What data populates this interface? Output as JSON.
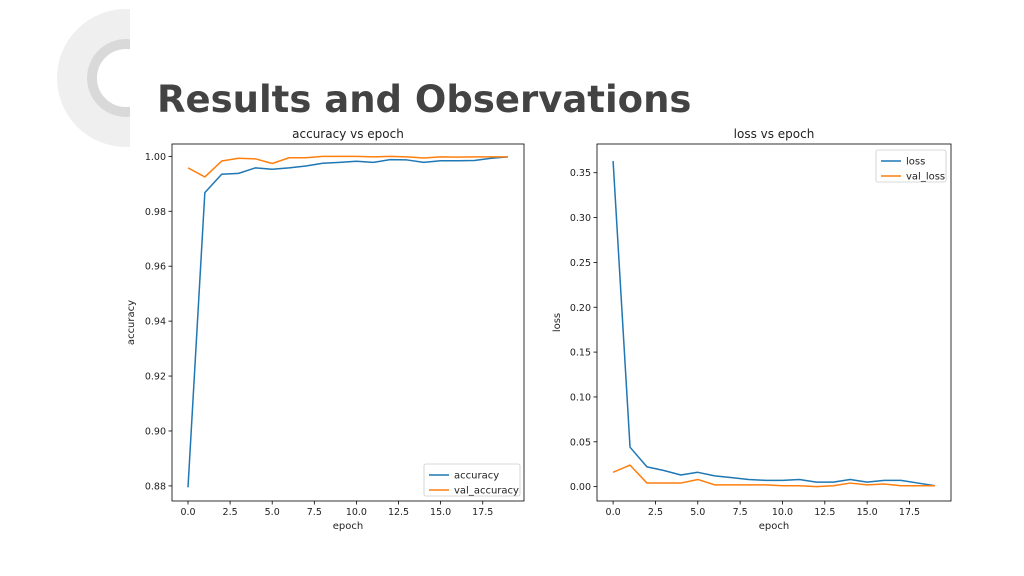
{
  "slide": {
    "title": "Results and Observations"
  },
  "colors": {
    "series_1": "#1f77b4",
    "series_2": "#ff7f0e",
    "title_text": "#434343",
    "deco_light": "#efefef",
    "deco_mid": "#d9d9d9"
  },
  "chart_data": [
    {
      "type": "line",
      "title": "accuracy vs epoch",
      "xlabel": "epoch",
      "ylabel": "accuracy",
      "xlim": [
        -0.95,
        19.95
      ],
      "ylim": [
        0.8745,
        1.0045
      ],
      "xticks": [
        0.0,
        2.5,
        5.0,
        7.5,
        10.0,
        12.5,
        15.0,
        17.5
      ],
      "xtick_labels": [
        "0.0",
        "2.5",
        "5.0",
        "7.5",
        "10.0",
        "12.5",
        "15.0",
        "17.5"
      ],
      "yticks": [
        0.88,
        0.9,
        0.92,
        0.94,
        0.96,
        0.98,
        1.0
      ],
      "ytick_labels": [
        "0.88",
        "0.90",
        "0.92",
        "0.94",
        "0.96",
        "0.98",
        "1.00"
      ],
      "legend_position": "lower right",
      "grid": false,
      "x": [
        0,
        1,
        2,
        3,
        4,
        5,
        6,
        7,
        8,
        9,
        10,
        11,
        12,
        13,
        14,
        15,
        16,
        17,
        18,
        19
      ],
      "series": [
        {
          "name": "accuracy",
          "color": "#1f77b4",
          "values": [
            0.8795,
            0.9868,
            0.9935,
            0.9938,
            0.9958,
            0.9953,
            0.9958,
            0.9965,
            0.9975,
            0.9978,
            0.9982,
            0.9978,
            0.9988,
            0.9987,
            0.9978,
            0.9984,
            0.9984,
            0.9985,
            0.9993,
            0.9998
          ]
        },
        {
          "name": "val_accuracy",
          "color": "#ff7f0e",
          "values": [
            0.9958,
            0.9925,
            0.9983,
            0.9993,
            0.9991,
            0.9974,
            0.9995,
            0.9995,
            1.0,
            1.0,
            1.0,
            0.9998,
            1.0,
            0.9998,
            0.9994,
            0.9998,
            0.9997,
            0.9998,
            0.9998,
            0.9998
          ]
        }
      ]
    },
    {
      "type": "line",
      "title": "loss vs epoch",
      "xlabel": "epoch",
      "ylabel": "loss",
      "xlim": [
        -0.95,
        19.95
      ],
      "ylim": [
        -0.016,
        0.382
      ],
      "xticks": [
        0.0,
        2.5,
        5.0,
        7.5,
        10.0,
        12.5,
        15.0,
        17.5
      ],
      "xtick_labels": [
        "0.0",
        "2.5",
        "5.0",
        "7.5",
        "10.0",
        "12.5",
        "15.0",
        "17.5"
      ],
      "yticks": [
        0.0,
        0.05,
        0.1,
        0.15,
        0.2,
        0.25,
        0.3,
        0.35
      ],
      "ytick_labels": [
        "0.00",
        "0.05",
        "0.10",
        "0.15",
        "0.20",
        "0.25",
        "0.30",
        "0.35"
      ],
      "legend_position": "upper right",
      "grid": false,
      "x": [
        0,
        1,
        2,
        3,
        4,
        5,
        6,
        7,
        8,
        9,
        10,
        11,
        12,
        13,
        14,
        15,
        16,
        17,
        18,
        19
      ],
      "series": [
        {
          "name": "loss",
          "color": "#1f77b4",
          "values": [
            0.363,
            0.044,
            0.022,
            0.018,
            0.013,
            0.016,
            0.012,
            0.01,
            0.008,
            0.007,
            0.007,
            0.008,
            0.005,
            0.005,
            0.008,
            0.005,
            0.007,
            0.007,
            0.004,
            0.001
          ]
        },
        {
          "name": "val_loss",
          "color": "#ff7f0e",
          "values": [
            0.016,
            0.024,
            0.004,
            0.004,
            0.004,
            0.008,
            0.002,
            0.002,
            0.002,
            0.002,
            0.001,
            0.001,
            0.0,
            0.001,
            0.004,
            0.002,
            0.003,
            0.001,
            0.001,
            0.001
          ]
        }
      ]
    }
  ]
}
